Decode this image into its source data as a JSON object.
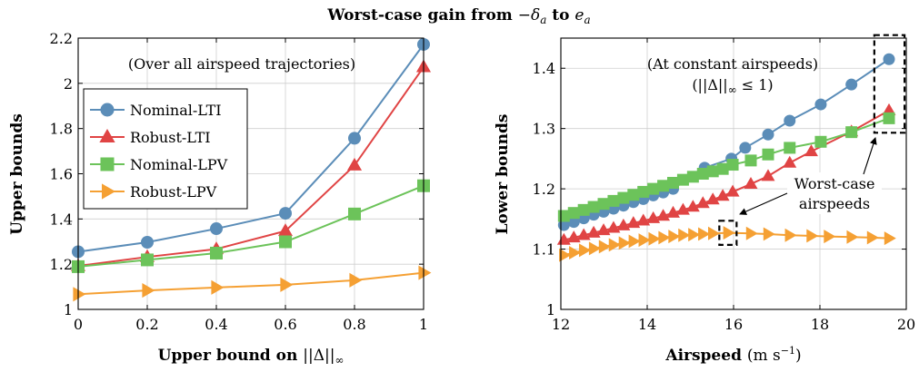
{
  "title_prefix": "Worst-case gain from ",
  "title_from": "−δ",
  "title_from_sub": "a",
  "title_to_word": " to ",
  "title_to": "e",
  "title_to_sub": "a",
  "legend": [
    "Nominal-LTI",
    "Robust-LTI",
    "Nominal-LPV",
    "Robust-LPV"
  ],
  "colors": [
    "#5b8db8",
    "#e04444",
    "#6cc35a",
    "#f5a033"
  ],
  "chart_data": [
    {
      "type": "line",
      "ylabel": "Upper bounds",
      "xlabel": "Upper bound on ||Δ||∞",
      "xlabel_text": "Upper bound on ",
      "xlabel_math": "||Δ||",
      "xlabel_sub": "∞",
      "annotation": "(Over all airspeed trajectories)",
      "xlim": [
        0,
        1
      ],
      "ylim": [
        1,
        2.2
      ],
      "xticks": [
        0,
        0.2,
        0.4,
        0.6,
        0.8,
        1
      ],
      "xtick_labels": [
        "0",
        "0.2",
        "0.4",
        "0.6",
        "0.8",
        "1"
      ],
      "yticks": [
        1,
        1.2,
        1.4,
        1.6,
        1.8,
        2,
        2.2
      ],
      "ytick_labels": [
        "1",
        "1.2",
        "1.4",
        "1.6",
        "1.8",
        "2",
        "2.2"
      ],
      "legend_position": "middle-left",
      "grid": true,
      "x": [
        0,
        0.2,
        0.4,
        0.6,
        0.8,
        1
      ],
      "series": [
        {
          "name": "Nominal-LTI",
          "marker": "circle",
          "values": [
            1.255,
            1.297,
            1.357,
            1.425,
            1.757,
            2.172
          ]
        },
        {
          "name": "Robust-LTI",
          "marker": "triangle-up",
          "values": [
            1.192,
            1.232,
            1.267,
            1.347,
            1.637,
            2.072
          ]
        },
        {
          "name": "Nominal-LPV",
          "marker": "square",
          "values": [
            1.189,
            1.219,
            1.249,
            1.299,
            1.422,
            1.547
          ]
        },
        {
          "name": "Robust-LPV",
          "marker": "triangle-right",
          "values": [
            1.067,
            1.084,
            1.097,
            1.109,
            1.129,
            1.162
          ]
        }
      ]
    },
    {
      "type": "line",
      "ylabel": "Lower bounds",
      "xlabel": "Airspeed (m s−1)",
      "xlabel_text": "Airspeed ",
      "xlabel_unit": "(m s",
      "xlabel_sup": "−1",
      "xlabel_close": ")",
      "annotation_line1": "(At constant airspeeds)",
      "annotation_line2_open": "(||Δ||",
      "annotation_line2_sub": "∞",
      "annotation_line2_rest": " ≤ 1)",
      "callout_line1": "Worst-case",
      "callout_line2": "airspeeds",
      "xlim": [
        12,
        20
      ],
      "ylim": [
        1,
        1.45
      ],
      "xticks": [
        12,
        14,
        16,
        18,
        20
      ],
      "xtick_labels": [
        "12",
        "14",
        "16",
        "18",
        "20"
      ],
      "yticks": [
        1,
        1.1,
        1.2,
        1.3,
        1.4
      ],
      "ytick_labels": [
        "1",
        "1.1",
        "1.2",
        "1.3",
        "1.4"
      ],
      "grid": true,
      "highlight_boxes": [
        {
          "x": [
            15.67,
            16.07
          ],
          "y": [
            1.107,
            1.147
          ]
        },
        {
          "x": [
            19.26,
            19.96
          ],
          "y": [
            1.293,
            1.455
          ]
        }
      ],
      "series": [
        {
          "name": "Nominal-LTI",
          "marker": "circle",
          "x": [
            12.07,
            12.3,
            12.53,
            12.76,
            12.99,
            13.22,
            13.45,
            13.68,
            13.91,
            14.14,
            14.37,
            14.6,
            15.33,
            15.95,
            16.27,
            16.8,
            17.3,
            18.02,
            18.73,
            19.6
          ],
          "values": [
            1.14,
            1.145,
            1.151,
            1.157,
            1.162,
            1.167,
            1.172,
            1.178,
            1.183,
            1.189,
            1.194,
            1.2,
            1.235,
            1.25,
            1.268,
            1.29,
            1.313,
            1.34,
            1.373,
            1.415
          ]
        },
        {
          "name": "Robust-LTI",
          "marker": "triangle-up",
          "x": [
            12.07,
            12.3,
            12.53,
            12.76,
            12.99,
            13.22,
            13.45,
            13.68,
            13.91,
            14.14,
            14.37,
            14.6,
            14.83,
            15.06,
            15.29,
            15.52,
            15.75,
            15.98,
            16.4,
            16.8,
            17.3,
            17.8,
            18.73,
            19.6
          ],
          "values": [
            1.115,
            1.119,
            1.123,
            1.127,
            1.131,
            1.135,
            1.139,
            1.143,
            1.147,
            1.151,
            1.155,
            1.16,
            1.165,
            1.17,
            1.176,
            1.182,
            1.188,
            1.195,
            1.208,
            1.221,
            1.243,
            1.262,
            1.295,
            1.33
          ]
        },
        {
          "name": "Nominal-LPV",
          "marker": "square",
          "x": [
            12.07,
            12.3,
            12.53,
            12.76,
            12.99,
            13.22,
            13.45,
            13.68,
            13.91,
            14.14,
            14.37,
            14.6,
            14.83,
            15.06,
            15.29,
            15.52,
            15.75,
            15.98,
            16.4,
            16.8,
            17.3,
            18.02,
            18.73,
            19.6
          ],
          "values": [
            1.155,
            1.16,
            1.165,
            1.17,
            1.175,
            1.18,
            1.185,
            1.19,
            1.195,
            1.2,
            1.205,
            1.21,
            1.215,
            1.22,
            1.225,
            1.229,
            1.233,
            1.24,
            1.247,
            1.257,
            1.268,
            1.278,
            1.294,
            1.317
          ]
        },
        {
          "name": "Robust-LPV",
          "marker": "triangle-right",
          "x": [
            12.07,
            12.3,
            12.53,
            12.76,
            12.99,
            13.22,
            13.45,
            13.68,
            13.91,
            14.14,
            14.37,
            14.6,
            14.83,
            15.06,
            15.29,
            15.52,
            15.87,
            16.4,
            16.8,
            17.3,
            17.8,
            18.2,
            18.73,
            19.2,
            19.6
          ],
          "values": [
            1.09,
            1.094,
            1.098,
            1.101,
            1.104,
            1.107,
            1.11,
            1.113,
            1.115,
            1.117,
            1.119,
            1.121,
            1.123,
            1.124,
            1.125,
            1.126,
            1.127,
            1.126,
            1.125,
            1.123,
            1.122,
            1.121,
            1.12,
            1.119,
            1.118
          ]
        }
      ]
    }
  ]
}
